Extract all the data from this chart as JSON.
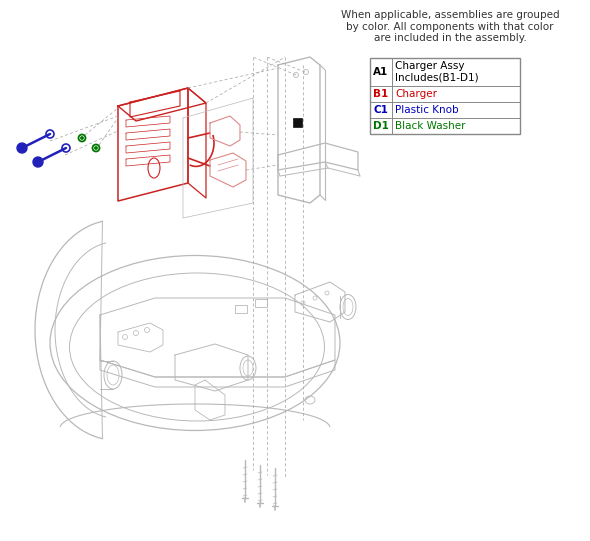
{
  "title_text": "When applicable, assemblies are grouped\nby color. All components with that color\nare included in the assembly.",
  "table_data": [
    {
      "id": "A1",
      "desc": "Charger Assy\nIncludes(B1-D1)",
      "id_color": "#000000",
      "desc_color": "#000000"
    },
    {
      "id": "B1",
      "desc": "Charger",
      "id_color": "#cc0000",
      "desc_color": "#cc0000"
    },
    {
      "id": "C1",
      "desc": "Plastic Knob",
      "id_color": "#0000bb",
      "desc_color": "#0000bb"
    },
    {
      "id": "D1",
      "desc": "Black Washer",
      "id_color": "#007700",
      "desc_color": "#007700"
    }
  ],
  "bg_color": "#ffffff",
  "table_border_color": "#888888",
  "gray": "#b8b8b8",
  "dark_gray": "#909090",
  "red": "#cc2222",
  "light_red": "#dd8888",
  "blue": "#2222bb",
  "green": "#007700",
  "dash_color": "#aaaaaa",
  "black": "#111111"
}
